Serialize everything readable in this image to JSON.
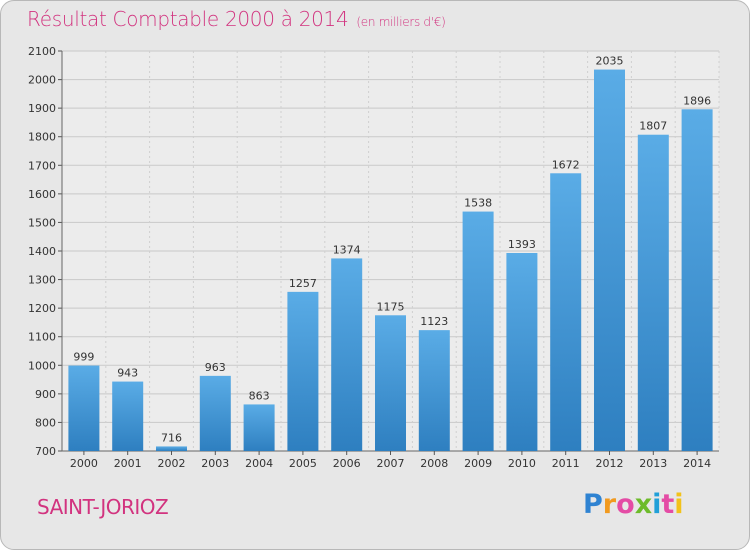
{
  "header": {
    "title": "Résultat Comptable 2000 à 2014",
    "subtitle": "(en milliers d'€)"
  },
  "footer": {
    "commune": "SAINT-JORIOZ",
    "logo": [
      "P",
      "r",
      "o",
      "x",
      "i",
      "t",
      "i"
    ]
  },
  "colors": {
    "bar_light": "#5aace6",
    "bar_dark": "#2e7fc0",
    "accent": "#d2337f"
  },
  "chart_data": {
    "type": "bar",
    "title": "Résultat Comptable 2000 à 2014",
    "xlabel": "",
    "ylabel": "",
    "categories": [
      "2000",
      "2001",
      "2002",
      "2003",
      "2004",
      "2005",
      "2006",
      "2007",
      "2008",
      "2009",
      "2010",
      "2011",
      "2012",
      "2013",
      "2014"
    ],
    "values": [
      999,
      943,
      716,
      963,
      863,
      1257,
      1374,
      1175,
      1123,
      1538,
      1393,
      1672,
      2035,
      1807,
      1896
    ],
    "ylim": [
      700,
      2100
    ],
    "yticks": [
      700,
      800,
      900,
      1000,
      1100,
      1200,
      1300,
      1400,
      1500,
      1600,
      1700,
      1800,
      1900,
      2000,
      2100
    ],
    "grid": true
  }
}
